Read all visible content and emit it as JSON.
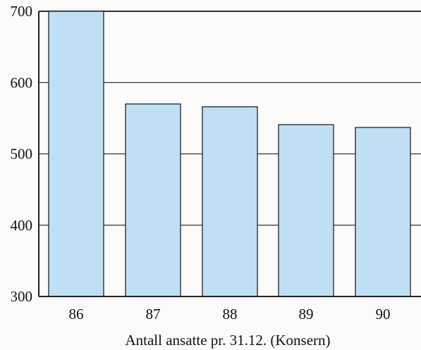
{
  "chart_data": {
    "type": "bar",
    "categories": [
      "86",
      "87",
      "88",
      "89",
      "90"
    ],
    "values": [
      700,
      570,
      566,
      541,
      537
    ],
    "title": "",
    "xlabel": "Antall ansatte pr. 31.12. (Konsern)",
    "ylabel": "",
    "ylim": [
      300,
      700
    ],
    "yticks": [
      "300",
      "400",
      "500",
      "600",
      "700"
    ],
    "grid": true,
    "legend": "none",
    "colors": {
      "bar": "#bfe0f4",
      "bar_edge": "#222222",
      "grid": "#333333",
      "background": "#fbfbfa"
    }
  }
}
